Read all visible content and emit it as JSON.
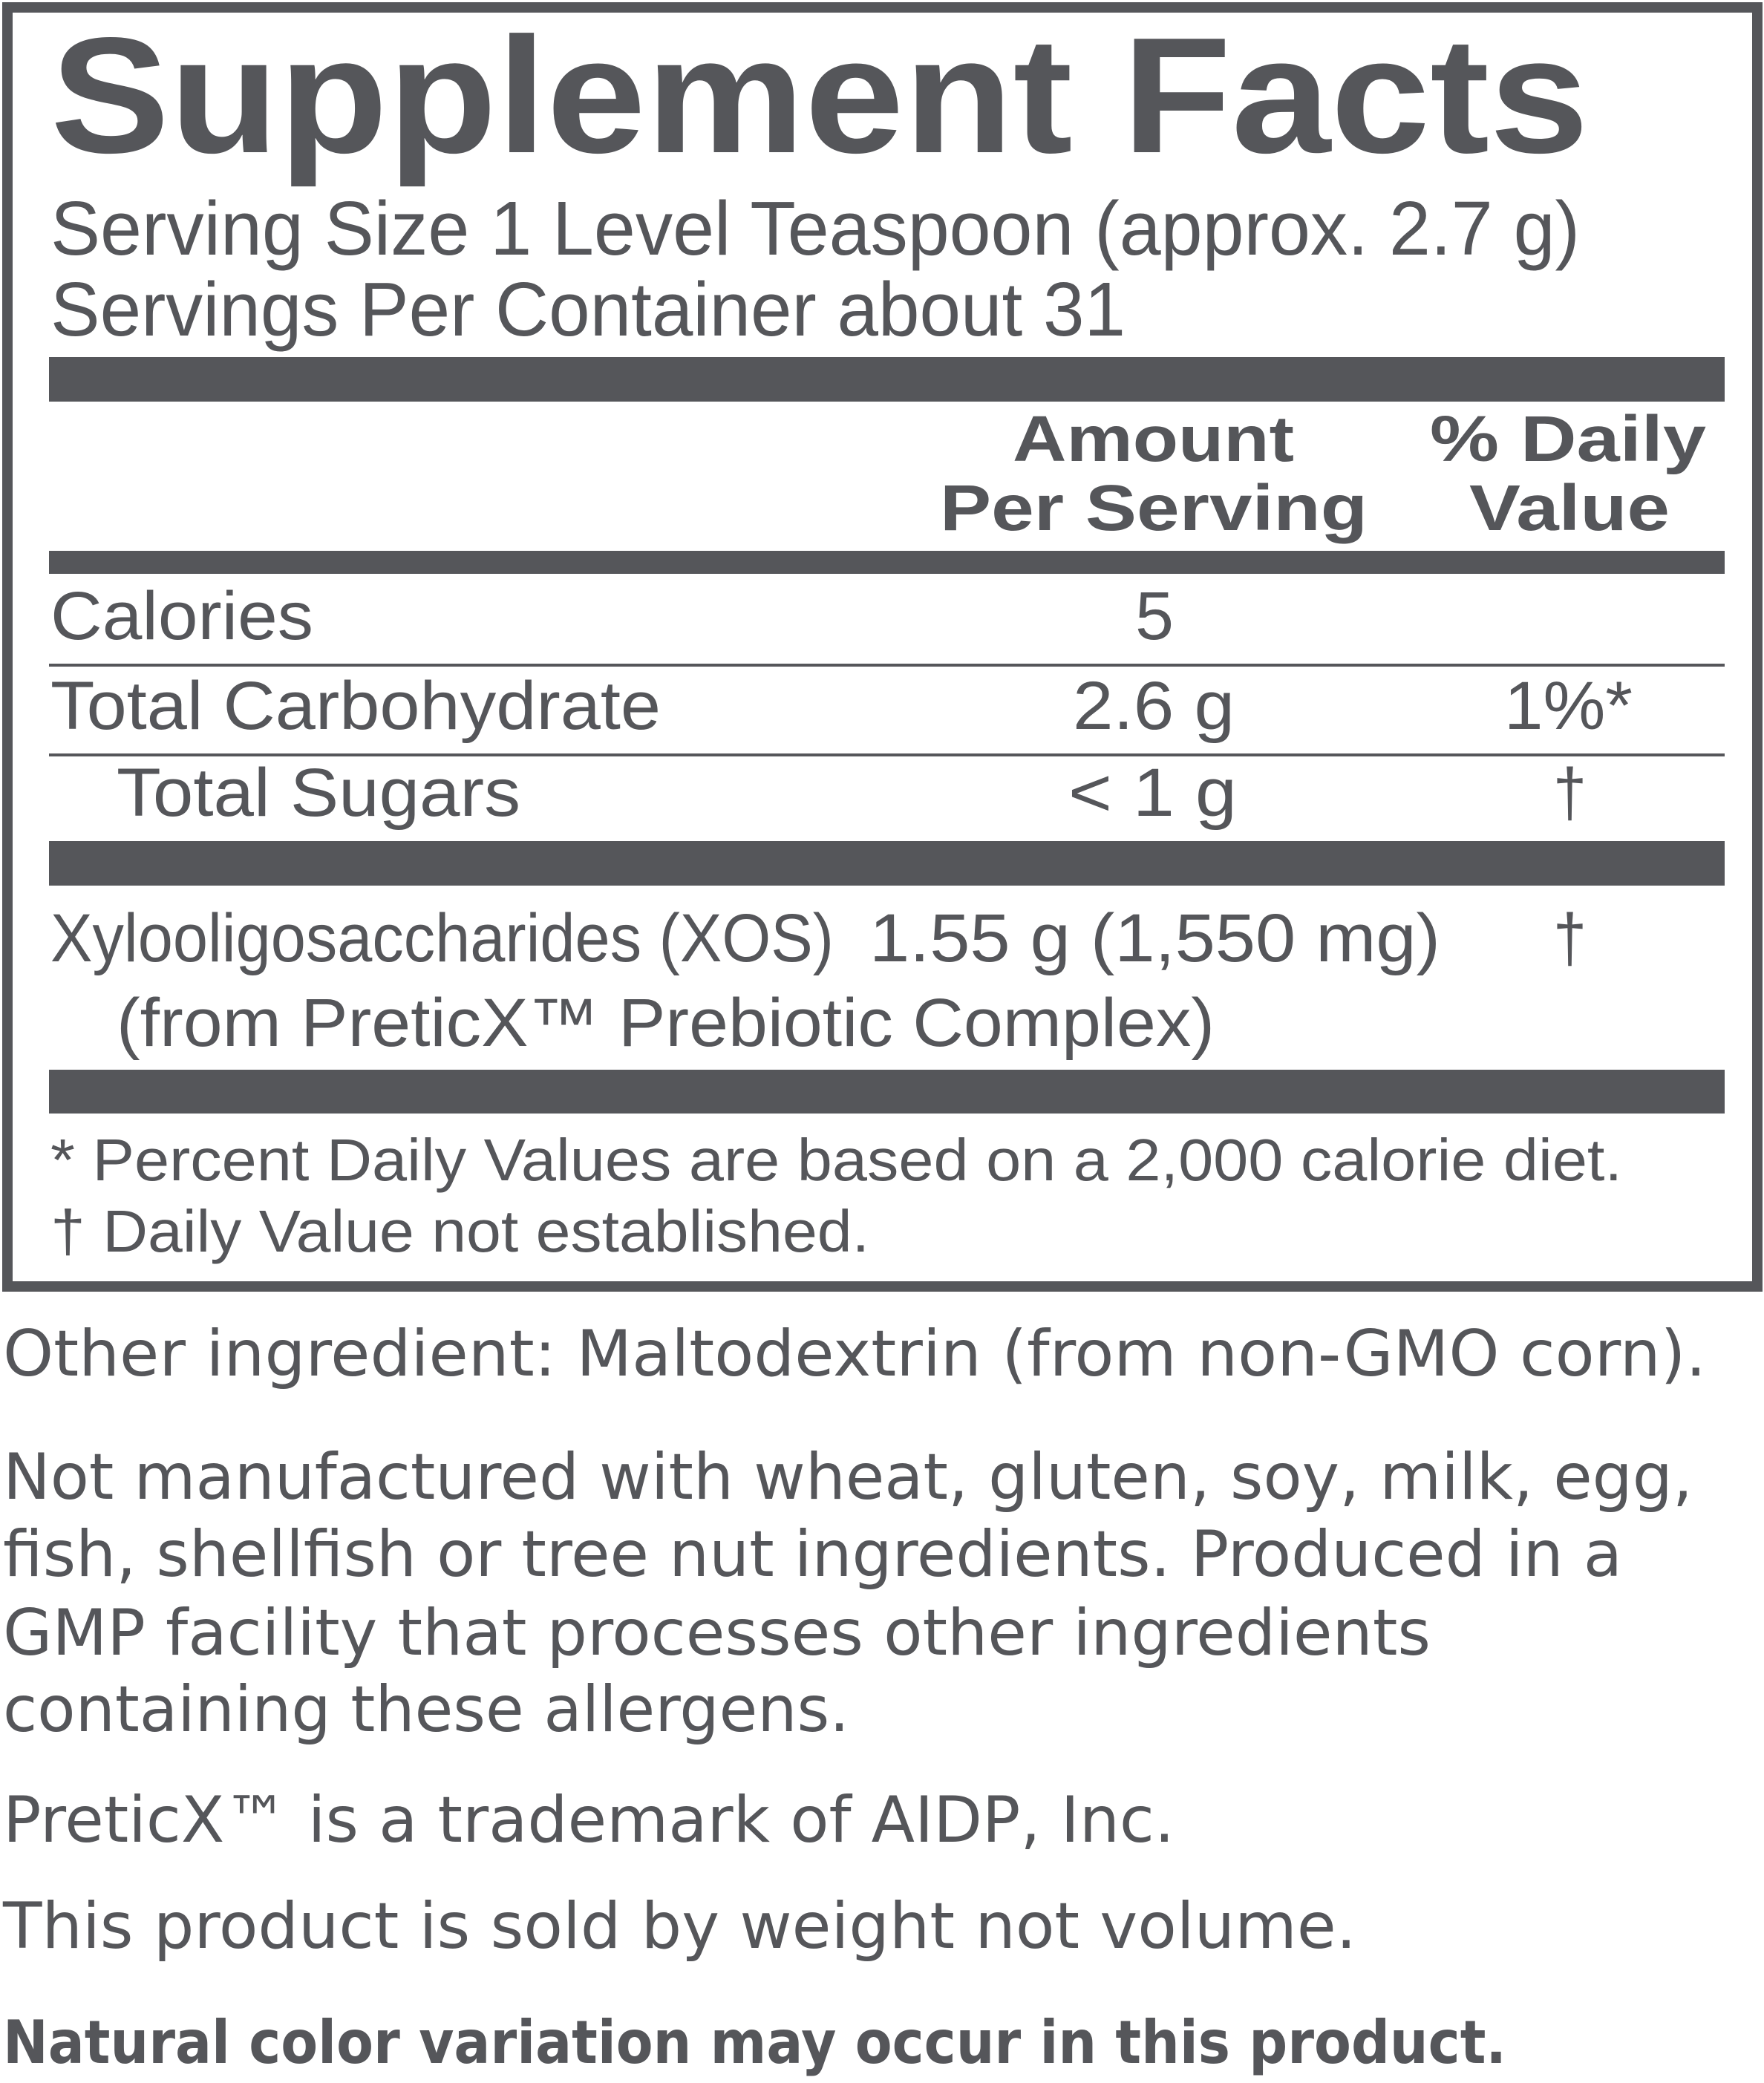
{
  "colors": {
    "ink": "#55565a",
    "background": "#ffffff"
  },
  "panel": {
    "title": "Supplement Facts",
    "serving_size": "Serving Size 1 Level Teaspoon (approx. 2.7 g)",
    "servings_per_container": "Servings Per Container about 31",
    "header": {
      "amount_line1": "Amount",
      "amount_line2": "Per Serving",
      "dv_line1": "% Daily",
      "dv_line2": "Value"
    },
    "rows": [
      {
        "name": "Calories",
        "amount": "5",
        "dv": ""
      },
      {
        "name": "Total Carbohydrate",
        "amount": "2.6 g",
        "dv": "1%*"
      },
      {
        "name": "Total Sugars",
        "amount": "< 1 g",
        "dv": "†"
      }
    ],
    "xos": {
      "name": "Xylooligosaccharides (XOS)",
      "amount": "1.55 g (1,550 mg)",
      "dv": "†",
      "source": "(from PreticX™ Prebiotic Complex)"
    },
    "footnotes": [
      "* Percent Daily Values are based on a 2,000 calorie diet.",
      "† Daily Value not established."
    ]
  },
  "below": {
    "other_ingredient": "Other ingredient: Maltodextrin (from non-GMO corn).",
    "allergen_lines": [
      "Not manufactured with wheat, gluten, soy, milk, egg,",
      "fish, shellfish or tree nut ingredients. Produced in a",
      "GMP facility that processes other ingredients",
      "containing these allergens."
    ],
    "trademark": "PreticX™ is a trademark of AIDP, Inc.",
    "weight_note": "This product is sold by weight not volume.",
    "color_note": "Natural color variation may occur in this product."
  }
}
